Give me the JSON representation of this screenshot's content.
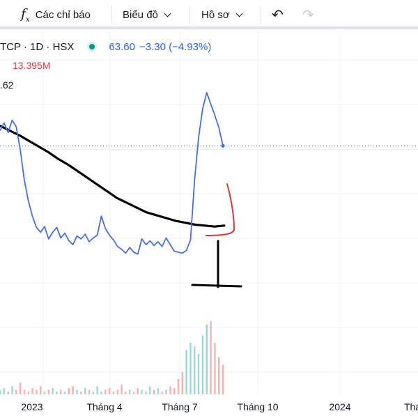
{
  "toolbar": {
    "indicators_label": "Các chỉ báo",
    "chart_label": "Biểu đồ",
    "profile_label": "Hồ sơ"
  },
  "legend": {
    "symbol": "TCP · 1D · HSX",
    "price": "63.60",
    "change": "−3.30 (−4.93%)",
    "volume": "13.395M",
    "ma_value": ".62"
  },
  "colors": {
    "price_line": "#4a6fdc",
    "ma_line": "#000000",
    "volume_up": "#26a69a",
    "volume_down": "#ef5350",
    "annotation_red": "#d9363e",
    "annotation_black": "#000000"
  },
  "x_axis": {
    "ticks": [
      "2023",
      "Tháng 4",
      "Tháng 7",
      "Tháng 10",
      "2024",
      "Thá"
    ]
  },
  "chart_data": {
    "type": "line",
    "title": "",
    "series": [
      {
        "name": "",
        "values": [
          57.2,
          58.0,
          57.0,
          58.3,
          57.6,
          55.2,
          52.0,
          49.8,
          48.2,
          47.0,
          46.5,
          47.1,
          45.8,
          46.5,
          47.0,
          45.9,
          46.4,
          45.6,
          45.2,
          46.1,
          45.8,
          46.3,
          45.5,
          45.9,
          46.2,
          48.2,
          46.9,
          46.2,
          45.7,
          45.0,
          44.7,
          44.3,
          44.9,
          44.4,
          44.2,
          45.8,
          45.2,
          45.6,
          45.1,
          45.5,
          45.0,
          45.9,
          45.2,
          44.5,
          44.4,
          44.3,
          44.6,
          45.7,
          52.0,
          56.5,
          59.5,
          61.2,
          60.0,
          58.8,
          57.5,
          55.6
        ]
      },
      {
        "name": "",
        "values": [
          57.7,
          57.2,
          56.7,
          56.1,
          55.5,
          54.9,
          54.2,
          53.6,
          52.9,
          52.2,
          51.5,
          50.8,
          50.1,
          49.6,
          49.1,
          48.6,
          48.3,
          48.0,
          47.7,
          47.5,
          47.3,
          47.2,
          47.1,
          47.2
        ]
      }
    ],
    "volume": [
      4,
      5,
      3,
      6,
      4,
      8,
      4,
      3,
      5,
      4,
      6,
      3,
      4,
      5,
      3,
      4,
      3,
      5,
      6,
      4,
      3,
      5,
      4,
      3,
      6,
      3,
      4,
      5,
      3,
      4,
      7,
      3,
      4,
      3,
      5,
      4,
      3,
      6,
      4,
      5,
      3,
      4,
      6,
      5,
      10,
      14,
      26,
      30,
      28,
      24,
      34,
      40,
      42,
      30,
      22,
      18
    ],
    "xlabel": "",
    "ylabel": ""
  }
}
